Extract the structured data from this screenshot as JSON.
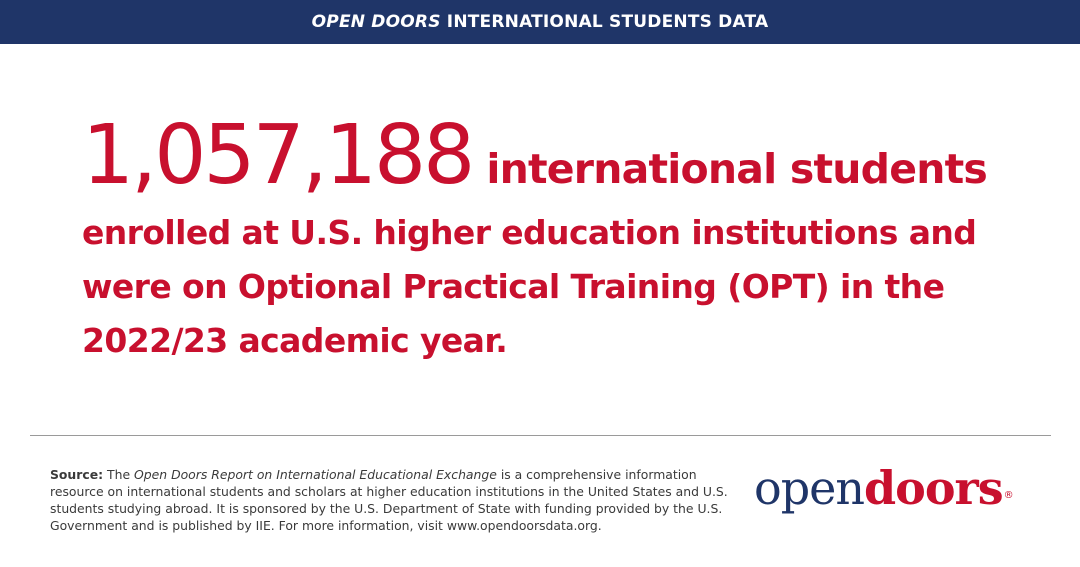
{
  "banner": {
    "italic_part": "OPEN DOORS",
    "rest": "INTERNATIONAL STUDENTS DATA"
  },
  "headline": {
    "number": "1,057,188",
    "lead": "international students",
    "body": "enrolled at U.S. higher education institutions and were on Optional Practical Training (OPT) in the 2022/23 academic year."
  },
  "source": {
    "label": "Source:",
    "pre": "The",
    "report": "Open Doors Report on International Educational Exchange",
    "text": "is a comprehensive information resource on international students and scholars at higher education institutions in the United States and U.S. students studying abroad. It is sponsored by the U.S. Department of State with funding provided by the U.S. Government and is published by IIE. For more information, visit www.opendoorsdata.org."
  },
  "logo": {
    "open": "open",
    "doors": "doors",
    "registered": "®"
  },
  "colors": {
    "banner_bg": "#1f3568",
    "accent_red": "#c8102e",
    "logo_navy": "#1f3568"
  }
}
